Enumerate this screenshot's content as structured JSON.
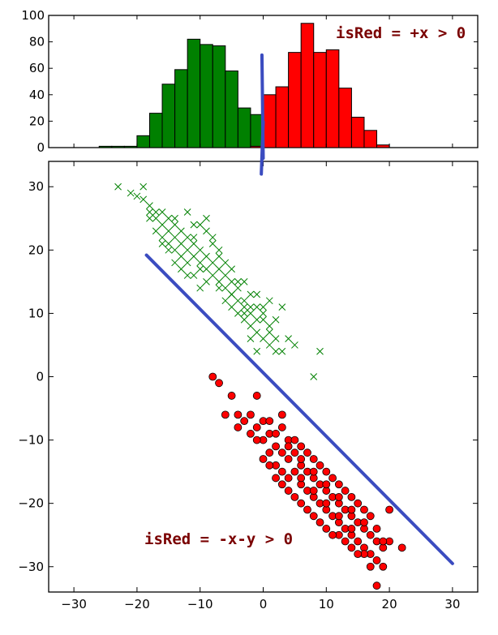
{
  "chart_data": [
    {
      "type": "bar",
      "title": "",
      "xlabel": "",
      "ylabel": "",
      "xlim": [
        -34,
        34
      ],
      "ylim": [
        0,
        100
      ],
      "yticks": [
        0,
        20,
        40,
        60,
        80,
        100
      ],
      "bin_width": 2,
      "annotation": "isRed = +x > 0",
      "colors": {
        "green": "#008000",
        "red": "#ff0000",
        "divider": "#3b4cc0",
        "annotation": "#7a0000"
      },
      "series": [
        {
          "bin_edges": [
            -26,
            -24,
            -22,
            -20,
            -18,
            -16,
            -14,
            -12,
            -10,
            -8,
            -6,
            -4,
            -2,
            0,
            2,
            4
          ],
          "values": [
            1,
            1,
            1,
            9,
            26,
            48,
            59,
            82,
            78,
            77,
            58,
            30,
            25,
            2,
            0
          ]
        },
        {
          "bin_edges": [
            -2,
            0,
            2,
            4,
            6,
            8,
            10,
            12,
            14,
            16,
            18,
            20,
            22,
            24,
            26
          ],
          "values": [
            1,
            40,
            46,
            72,
            94,
            72,
            74,
            45,
            23,
            13,
            2,
            0,
            0,
            0
          ]
        }
      ]
    },
    {
      "type": "scatter",
      "title": "",
      "xlabel": "",
      "ylabel": "",
      "xlim": [
        -34,
        34
      ],
      "ylim": [
        -34,
        34
      ],
      "xticks": [
        -30,
        -20,
        -10,
        0,
        10,
        20,
        30
      ],
      "yticks": [
        -30,
        -20,
        -10,
        0,
        10,
        20,
        30
      ],
      "annotation": "isRed = -x-y > 0",
      "boundary_line": [
        [
          -18.5,
          19.2
        ],
        [
          30,
          -29.5
        ]
      ],
      "divider_segment": [
        [
          -0.3,
          32
        ],
        [
          0,
          45
        ]
      ],
      "series": [
        {
          "marker": "x",
          "color": "#008000",
          "points": [
            [
              -23,
              30
            ],
            [
              -21,
              29
            ],
            [
              -20,
              28.5
            ],
            [
              -19,
              30
            ],
            [
              -19,
              28
            ],
            [
              -18,
              27
            ],
            [
              -17,
              26
            ],
            [
              -16,
              26
            ],
            [
              -15,
              25
            ],
            [
              -14,
              24
            ],
            [
              -17,
              25
            ],
            [
              -18,
              25
            ],
            [
              -16,
              24
            ],
            [
              -15,
              23
            ],
            [
              -14,
              22
            ],
            [
              -13,
              21
            ],
            [
              -16,
              22
            ],
            [
              -15,
              21
            ],
            [
              -14,
              20
            ],
            [
              -13,
              19
            ],
            [
              -12,
              22
            ],
            [
              -12,
              18
            ],
            [
              -11,
              21
            ],
            [
              -10,
              20
            ],
            [
              -11,
              19
            ],
            [
              -10,
              18
            ],
            [
              -9,
              17
            ],
            [
              -12,
              20
            ],
            [
              -13,
              23
            ],
            [
              -14,
              25
            ],
            [
              -12,
              26
            ],
            [
              -9,
              25
            ],
            [
              -10,
              24
            ],
            [
              -8,
              21
            ],
            [
              -7,
              20
            ],
            [
              -8,
              18
            ],
            [
              -7,
              17
            ],
            [
              -6,
              16
            ],
            [
              -5,
              15
            ],
            [
              -6,
              14
            ],
            [
              -4,
              14
            ],
            [
              -5,
              13
            ],
            [
              -4,
              12
            ],
            [
              -3,
              11
            ],
            [
              -2,
              10
            ],
            [
              -3,
              9
            ],
            [
              -2,
              8
            ],
            [
              -1,
              7
            ],
            [
              0,
              6
            ],
            [
              1,
              7
            ],
            [
              1,
              5
            ],
            [
              -1,
              9
            ],
            [
              0,
              10
            ],
            [
              2,
              9
            ],
            [
              -2,
              13
            ],
            [
              -4,
              15
            ],
            [
              -6,
              18
            ],
            [
              -8,
              22
            ],
            [
              -10,
              17
            ],
            [
              -11,
              16
            ],
            [
              -9,
              15
            ],
            [
              -7,
              14
            ],
            [
              -5,
              11
            ],
            [
              -3,
              12
            ],
            [
              -1,
              13
            ],
            [
              0,
              11
            ],
            [
              1,
              8
            ],
            [
              2,
              4
            ],
            [
              3,
              11
            ],
            [
              4,
              6
            ],
            [
              5,
              5
            ],
            [
              8,
              0
            ],
            [
              9,
              4
            ],
            [
              -1,
              4
            ],
            [
              -9,
              23
            ],
            [
              -11,
              22
            ],
            [
              -13,
              17
            ],
            [
              -15,
              20
            ],
            [
              -17,
              23
            ],
            [
              -18,
              26
            ],
            [
              -6,
              12
            ],
            [
              -4,
              10
            ],
            [
              -2,
              6
            ],
            [
              -8,
              16
            ],
            [
              -10,
              14
            ],
            [
              -12,
              16
            ],
            [
              -7,
              19
            ],
            [
              -5,
              17
            ],
            [
              -3,
              15
            ],
            [
              -1,
              11
            ],
            [
              0,
              9
            ],
            [
              1,
              12
            ],
            [
              -14,
              18
            ],
            [
              -16,
              21
            ],
            [
              -11,
              24
            ],
            [
              -9,
              19
            ],
            [
              -7,
              15
            ],
            [
              -5,
              13
            ],
            [
              -3,
              10
            ],
            [
              -2,
              11
            ],
            [
              2,
              6
            ],
            [
              3,
              4
            ]
          ]
        },
        {
          "marker": "o",
          "color": "#ff0000",
          "points": [
            [
              -8,
              0
            ],
            [
              -7,
              -1
            ],
            [
              -5,
              -3
            ],
            [
              -1,
              -3
            ],
            [
              -4,
              -6
            ],
            [
              -3,
              -7
            ],
            [
              -2,
              -6
            ],
            [
              -6,
              -6
            ],
            [
              -4,
              -8
            ],
            [
              -2,
              -9
            ],
            [
              -1,
              -8
            ],
            [
              0,
              -10
            ],
            [
              1,
              -9
            ],
            [
              1,
              -12
            ],
            [
              2,
              -11
            ],
            [
              2,
              -14
            ],
            [
              3,
              -12
            ],
            [
              3,
              -15
            ],
            [
              4,
              -13
            ],
            [
              4,
              -16
            ],
            [
              5,
              -12
            ],
            [
              5,
              -15
            ],
            [
              6,
              -14
            ],
            [
              6,
              -17
            ],
            [
              7,
              -15
            ],
            [
              7,
              -18
            ],
            [
              8,
              -16
            ],
            [
              8,
              -19
            ],
            [
              9,
              -17
            ],
            [
              9,
              -20
            ],
            [
              10,
              -18
            ],
            [
              10,
              -21
            ],
            [
              11,
              -19
            ],
            [
              11,
              -22
            ],
            [
              12,
              -20
            ],
            [
              12,
              -23
            ],
            [
              13,
              -21
            ],
            [
              13,
              -24
            ],
            [
              14,
              -22
            ],
            [
              14,
              -25
            ],
            [
              15,
              -23
            ],
            [
              15,
              -26
            ],
            [
              16,
              -24
            ],
            [
              16,
              -27
            ],
            [
              17,
              -25
            ],
            [
              17,
              -28
            ],
            [
              18,
              -26
            ],
            [
              18,
              -29
            ],
            [
              19,
              -27
            ],
            [
              19,
              -30
            ],
            [
              20,
              -26
            ],
            [
              22,
              -27
            ],
            [
              18,
              -33
            ],
            [
              20,
              -21
            ],
            [
              3,
              -8
            ],
            [
              4,
              -10
            ],
            [
              6,
              -11
            ],
            [
              8,
              -13
            ],
            [
              10,
              -15
            ],
            [
              12,
              -17
            ],
            [
              14,
              -19
            ],
            [
              16,
              -21
            ],
            [
              0,
              -13
            ],
            [
              2,
              -16
            ],
            [
              4,
              -18
            ],
            [
              6,
              -20
            ],
            [
              8,
              -22
            ],
            [
              10,
              -24
            ],
            [
              12,
              -25
            ],
            [
              14,
              -27
            ],
            [
              16,
              -28
            ],
            [
              -1,
              -10
            ],
            [
              1,
              -14
            ],
            [
              3,
              -17
            ],
            [
              5,
              -19
            ],
            [
              7,
              -21
            ],
            [
              9,
              -23
            ],
            [
              11,
              -25
            ],
            [
              13,
              -26
            ],
            [
              15,
              -28
            ],
            [
              17,
              -30
            ],
            [
              0,
              -7
            ],
            [
              2,
              -9
            ],
            [
              4,
              -11
            ],
            [
              6,
              -13
            ],
            [
              8,
              -15
            ],
            [
              10,
              -17
            ],
            [
              12,
              -19
            ],
            [
              14,
              -21
            ],
            [
              16,
              -23
            ],
            [
              18,
              -24
            ],
            [
              19,
              -26
            ],
            [
              5,
              -10
            ],
            [
              7,
              -12
            ],
            [
              9,
              -14
            ],
            [
              11,
              -16
            ],
            [
              13,
              -18
            ],
            [
              15,
              -20
            ],
            [
              17,
              -22
            ],
            [
              3,
              -6
            ],
            [
              1,
              -7
            ],
            [
              6,
              -16
            ],
            [
              8,
              -18
            ],
            [
              10,
              -20
            ],
            [
              12,
              -22
            ],
            [
              14,
              -24
            ]
          ]
        }
      ]
    }
  ]
}
